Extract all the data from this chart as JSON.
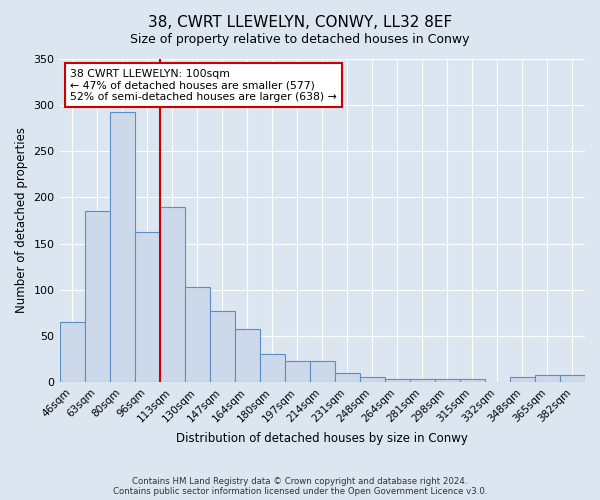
{
  "title": "38, CWRT LLEWELYN, CONWY, LL32 8EF",
  "subtitle": "Size of property relative to detached houses in Conwy",
  "xlabel": "Distribution of detached houses by size in Conwy",
  "ylabel": "Number of detached properties",
  "bin_labels": [
    "46sqm",
    "63sqm",
    "80sqm",
    "96sqm",
    "113sqm",
    "130sqm",
    "147sqm",
    "164sqm",
    "180sqm",
    "197sqm",
    "214sqm",
    "231sqm",
    "248sqm",
    "264sqm",
    "281sqm",
    "298sqm",
    "315sqm",
    "332sqm",
    "348sqm",
    "365sqm",
    "382sqm"
  ],
  "bar_heights": [
    65,
    185,
    293,
    163,
    190,
    103,
    77,
    57,
    30,
    23,
    23,
    10,
    5,
    3,
    3,
    3,
    3,
    0,
    5,
    7,
    7
  ],
  "bar_color": "#ccd9ea",
  "bar_edge_color": "#5b8ec4",
  "property_line_color": "#cc0000",
  "annotation_text": "38 CWRT LLEWELYN: 100sqm\n← 47% of detached houses are smaller (577)\n52% of semi-detached houses are larger (638) →",
  "annotation_box_color": "#cc0000",
  "ylim": [
    0,
    350
  ],
  "yticks": [
    0,
    50,
    100,
    150,
    200,
    250,
    300,
    350
  ],
  "footer_line1": "Contains HM Land Registry data © Crown copyright and database right 2024.",
  "footer_line2": "Contains public sector information licensed under the Open Government Licence v3.0.",
  "background_color": "#dce6f0",
  "plot_bg_color": "#dce6f0"
}
